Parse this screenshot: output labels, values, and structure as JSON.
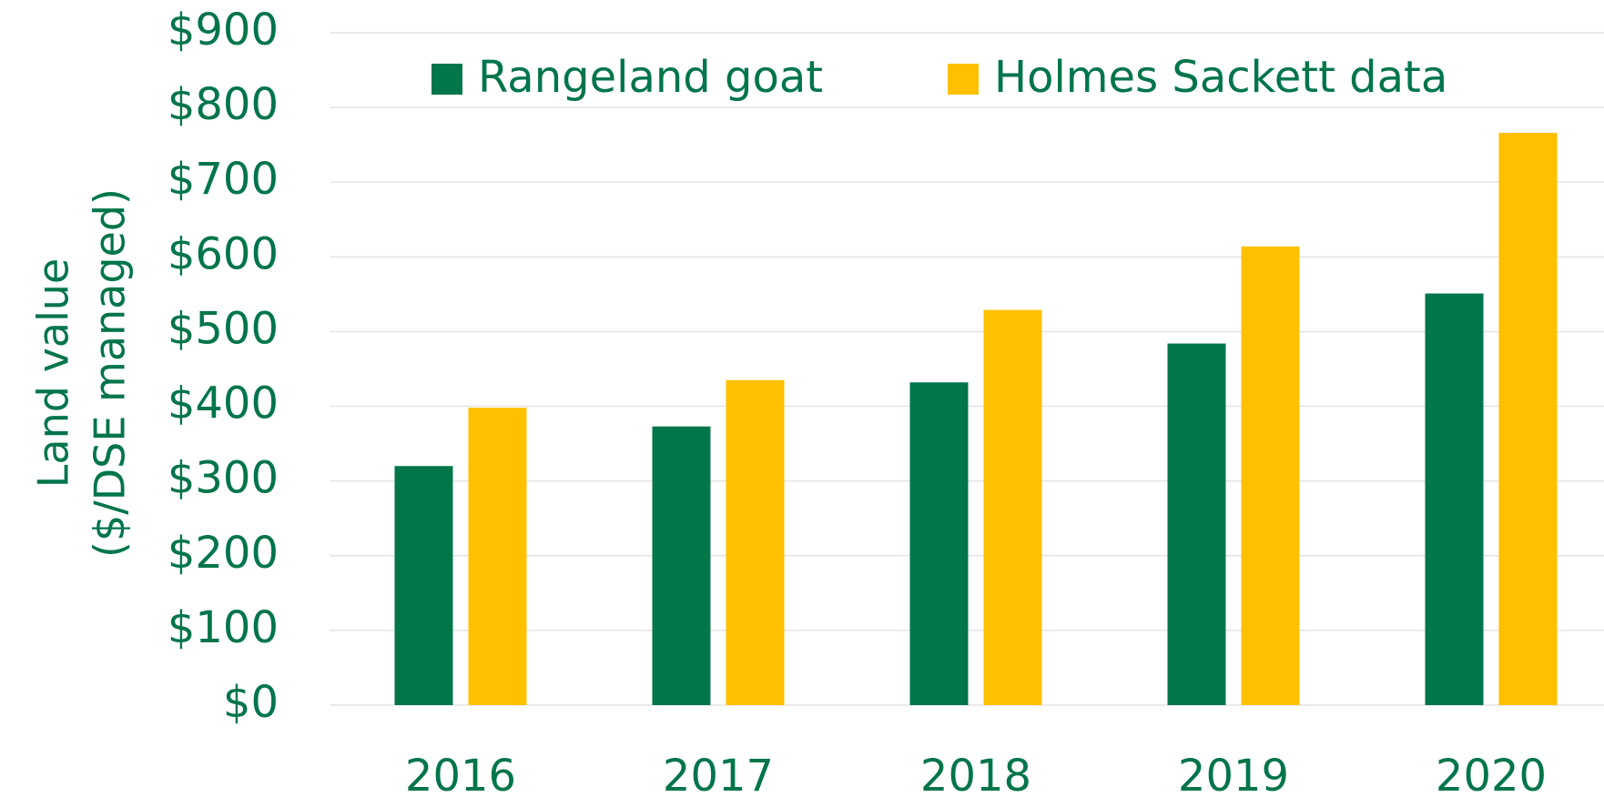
{
  "chart_data": {
    "type": "bar",
    "ylabel": [
      "Land value",
      "($/DSE managed)"
    ],
    "categories": [
      "2016",
      "2017",
      "2018",
      "2019",
      "2020"
    ],
    "series": [
      {
        "name": "Rangeland goat",
        "color": "#00764a",
        "values": [
          320,
          373,
          432,
          484,
          551
        ]
      },
      {
        "name": "Holmes Sackett data",
        "color": "#ffc000",
        "values": [
          398,
          435,
          529,
          614,
          766
        ]
      }
    ],
    "ylim": [
      0,
      900
    ],
    "yticks": [
      {
        "value": 0,
        "label": "$0"
      },
      {
        "value": 100,
        "label": "$100"
      },
      {
        "value": 200,
        "label": "$200"
      },
      {
        "value": 300,
        "label": "$300"
      },
      {
        "value": 400,
        "label": "$400"
      },
      {
        "value": 500,
        "label": "$500"
      },
      {
        "value": 600,
        "label": "$600"
      },
      {
        "value": 700,
        "label": "$700"
      },
      {
        "value": 800,
        "label": "$800"
      },
      {
        "value": 900,
        "label": "$900"
      }
    ],
    "grid": true,
    "legend": "top"
  }
}
